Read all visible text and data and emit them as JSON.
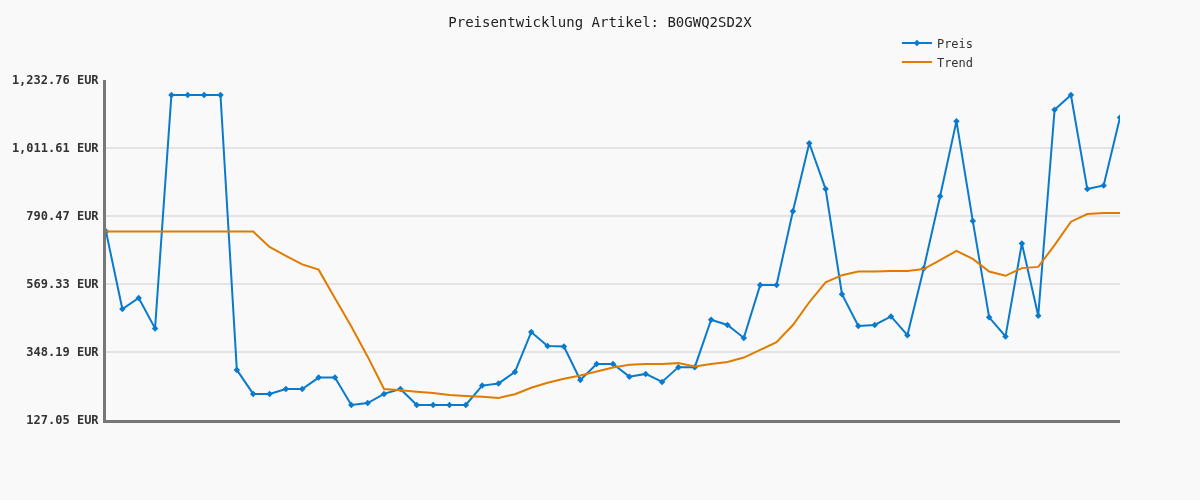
{
  "chart_data": {
    "type": "line",
    "title": "Preisentwicklung Artikel: B0GWQ2SD2X",
    "categories": [
      null,
      null,
      null,
      null,
      null,
      null,
      null,
      null,
      null,
      null,
      null,
      null,
      null,
      null,
      null,
      null,
      null,
      null,
      null,
      null,
      null,
      null,
      null,
      null,
      null,
      null,
      null,
      null,
      null,
      null,
      null,
      null,
      null,
      null,
      null,
      null,
      null,
      null,
      null,
      null,
      null,
      null,
      null,
      null,
      null,
      null,
      null,
      null,
      null,
      null,
      null,
      null,
      null,
      null,
      null,
      null,
      null,
      null,
      null,
      null,
      null,
      null,
      null
    ],
    "series": [
      {
        "name": "Preis",
        "color": "#0a7acc",
        "marker": "diamond",
        "values": [
          740,
          488,
          524,
          425,
          1184,
          1184,
          1184,
          1184,
          290,
          212,
          212,
          228,
          228,
          265,
          265,
          176,
          182,
          212,
          228,
          176,
          176,
          176,
          176,
          239,
          246,
          283,
          413,
          368,
          366,
          257,
          309,
          309,
          268,
          277,
          251,
          299,
          299,
          453,
          436,
          394,
          566,
          566,
          806,
          1027,
          878,
          536,
          433,
          436,
          464,
          403,
          620,
          855,
          1099,
          774,
          461,
          399,
          701,
          466,
          1136,
          1184,
          878,
          890,
          1111
        ]
      },
      {
        "name": "Trend",
        "color": "#e07b00",
        "marker": "none",
        "values": [
          740,
          740,
          740,
          740,
          740,
          740,
          740,
          740,
          740,
          740,
          690,
          661,
          633,
          616,
          523,
          431,
          333,
          228,
          224,
          219,
          215,
          208,
          205,
          203,
          199,
          211,
          232,
          248,
          261,
          272,
          285,
          298,
          307,
          309,
          309,
          312,
          301,
          309,
          316,
          330,
          355,
          380,
          436,
          510,
          575,
          598,
          610,
          610,
          612,
          612,
          618,
          647,
          677,
          651,
          610,
          596,
          621,
          625,
          696,
          772,
          797,
          800,
          800
        ]
      }
    ],
    "ylim": [
      127.05,
      1232.76
    ],
    "yticks": [
      {
        "value": 127.05,
        "label": "127.05 EUR"
      },
      {
        "value": 348.19,
        "label": "348.19 EUR"
      },
      {
        "value": 569.33,
        "label": "569.33 EUR"
      },
      {
        "value": 790.47,
        "label": "790.47 EUR"
      },
      {
        "value": 1011.61,
        "label": "1,011.61 EUR"
      },
      {
        "value": 1232.76,
        "label": "1,232.76 EUR"
      }
    ],
    "grid": "y",
    "legend": "top right",
    "tick_labels": "y",
    "line_style": "solid"
  }
}
